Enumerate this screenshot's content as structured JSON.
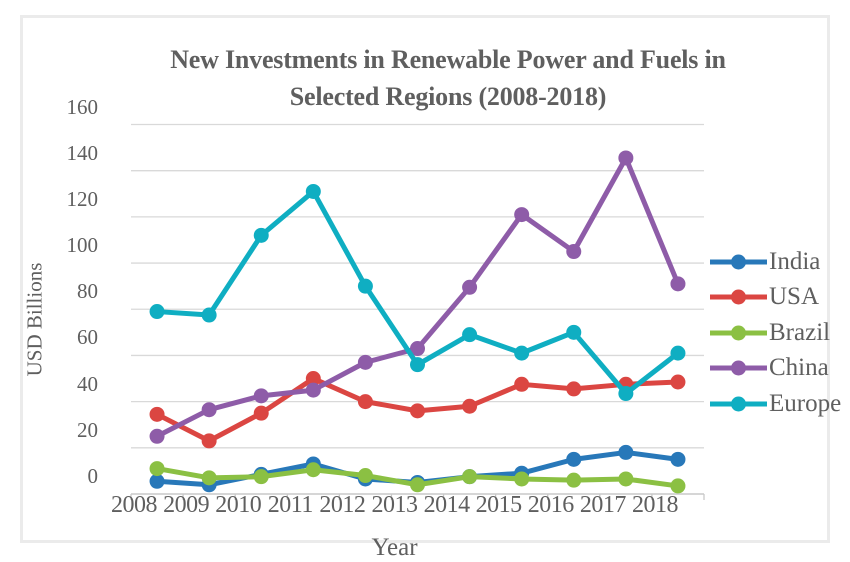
{
  "page": {
    "background": "#FFFFFF",
    "frame_border_color": "#EBEBEB",
    "text_color": "#5F5F5F",
    "grid_color": "#D9D9D9",
    "axis_color": "#C9C9C9"
  },
  "chart_data": {
    "type": "line",
    "title": "New Investments in Renewable Power and Fuels in Selected Regions (2008-2018)",
    "xlabel": "Year",
    "ylabel": "USD Billions",
    "x": [
      "2008",
      "2009",
      "2010",
      "2011",
      "2012",
      "2013",
      "2014",
      "2015",
      "2016",
      "2017",
      "2018"
    ],
    "ylim": [
      0,
      160
    ],
    "ytick_step": 20,
    "grid": true,
    "legend_position": "right",
    "marker": "circle",
    "series": [
      {
        "name": "India",
        "color": "#2878B9",
        "values": [
          5.5,
          4,
          8.5,
          13,
          6.5,
          5,
          7.5,
          9,
          15,
          18,
          15
        ]
      },
      {
        "name": "USA",
        "color": "#DB4642",
        "values": [
          34.5,
          23,
          35,
          50,
          40,
          36,
          38,
          47.5,
          45.5,
          47.5,
          48.5
        ]
      },
      {
        "name": "Brazil",
        "color": "#8BC043",
        "values": [
          11,
          7,
          7.5,
          10.5,
          8,
          4,
          7.5,
          6.5,
          6,
          6.5,
          3.5
        ]
      },
      {
        "name": "China",
        "color": "#8E5CA8",
        "values": [
          25,
          36.5,
          42.5,
          45,
          57,
          63,
          89.5,
          121,
          105,
          145.5,
          91
        ]
      },
      {
        "name": "Europe",
        "color": "#0FAEC2",
        "values": [
          79,
          77.5,
          112,
          131,
          90,
          56,
          69,
          61,
          70,
          43.5,
          61
        ]
      }
    ]
  }
}
